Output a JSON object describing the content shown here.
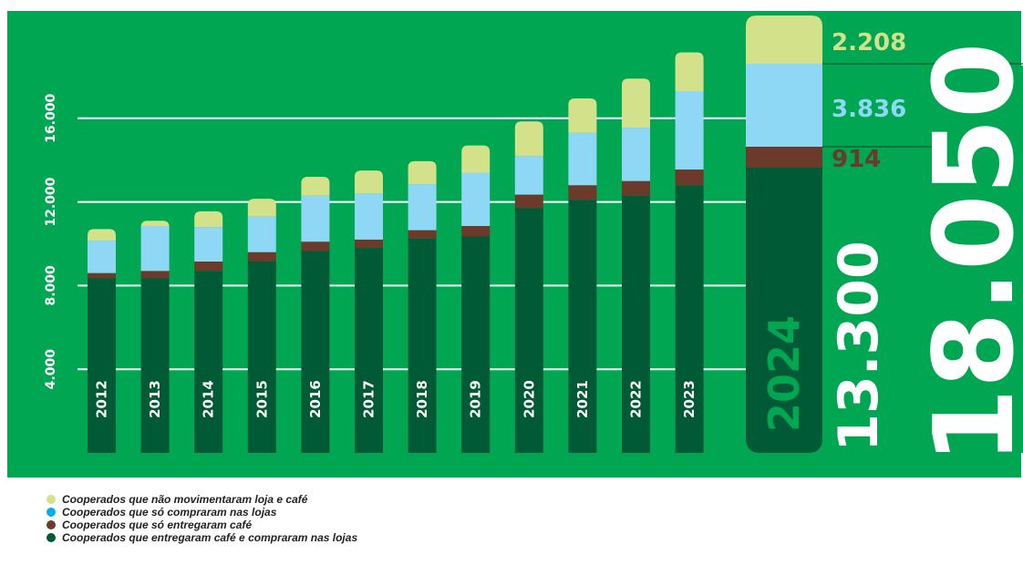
{
  "chart_data": {
    "type": "bar",
    "stacked": true,
    "categories": [
      "2012",
      "2013",
      "2014",
      "2015",
      "2016",
      "2017",
      "2018",
      "2019",
      "2020",
      "2021",
      "2022",
      "2023",
      "2024"
    ],
    "series": [
      {
        "name": "Cooperados que entregaram café e compraram nas lojas",
        "color": "#005a35",
        "values": [
          8350,
          8350,
          8700,
          9150,
          9650,
          9800,
          10250,
          10350,
          11700,
          12100,
          12300,
          12800,
          13300
        ]
      },
      {
        "name": "Cooperados que só entregaram café",
        "color": "#6b3a2a",
        "values": [
          250,
          350,
          450,
          450,
          450,
          400,
          400,
          500,
          650,
          700,
          700,
          750,
          914
        ]
      },
      {
        "name": "Cooperados que só compraram nas lojas",
        "color": "#8fd8f5",
        "values": [
          1550,
          2150,
          1650,
          1700,
          2200,
          2200,
          2200,
          2550,
          1850,
          2500,
          2550,
          3750,
          3836
        ]
      },
      {
        "name": "Cooperados que não movimentaram loja e café",
        "color": "#d3e18a",
        "values": [
          550,
          250,
          750,
          850,
          900,
          1100,
          1100,
          1300,
          1650,
          1650,
          2350,
          1850,
          2208
        ]
      }
    ],
    "totals": [],
    "yticks": [
      "4.000",
      "8.000",
      "12.000",
      "16.000"
    ],
    "ylim": [
      0,
      20000
    ],
    "grid": true,
    "legend_position": "bottom-left",
    "highlight": {
      "year": "2024",
      "total": "18.050",
      "labels": [
        "2.208",
        "3.836",
        "914",
        "13.300"
      ]
    }
  }
}
